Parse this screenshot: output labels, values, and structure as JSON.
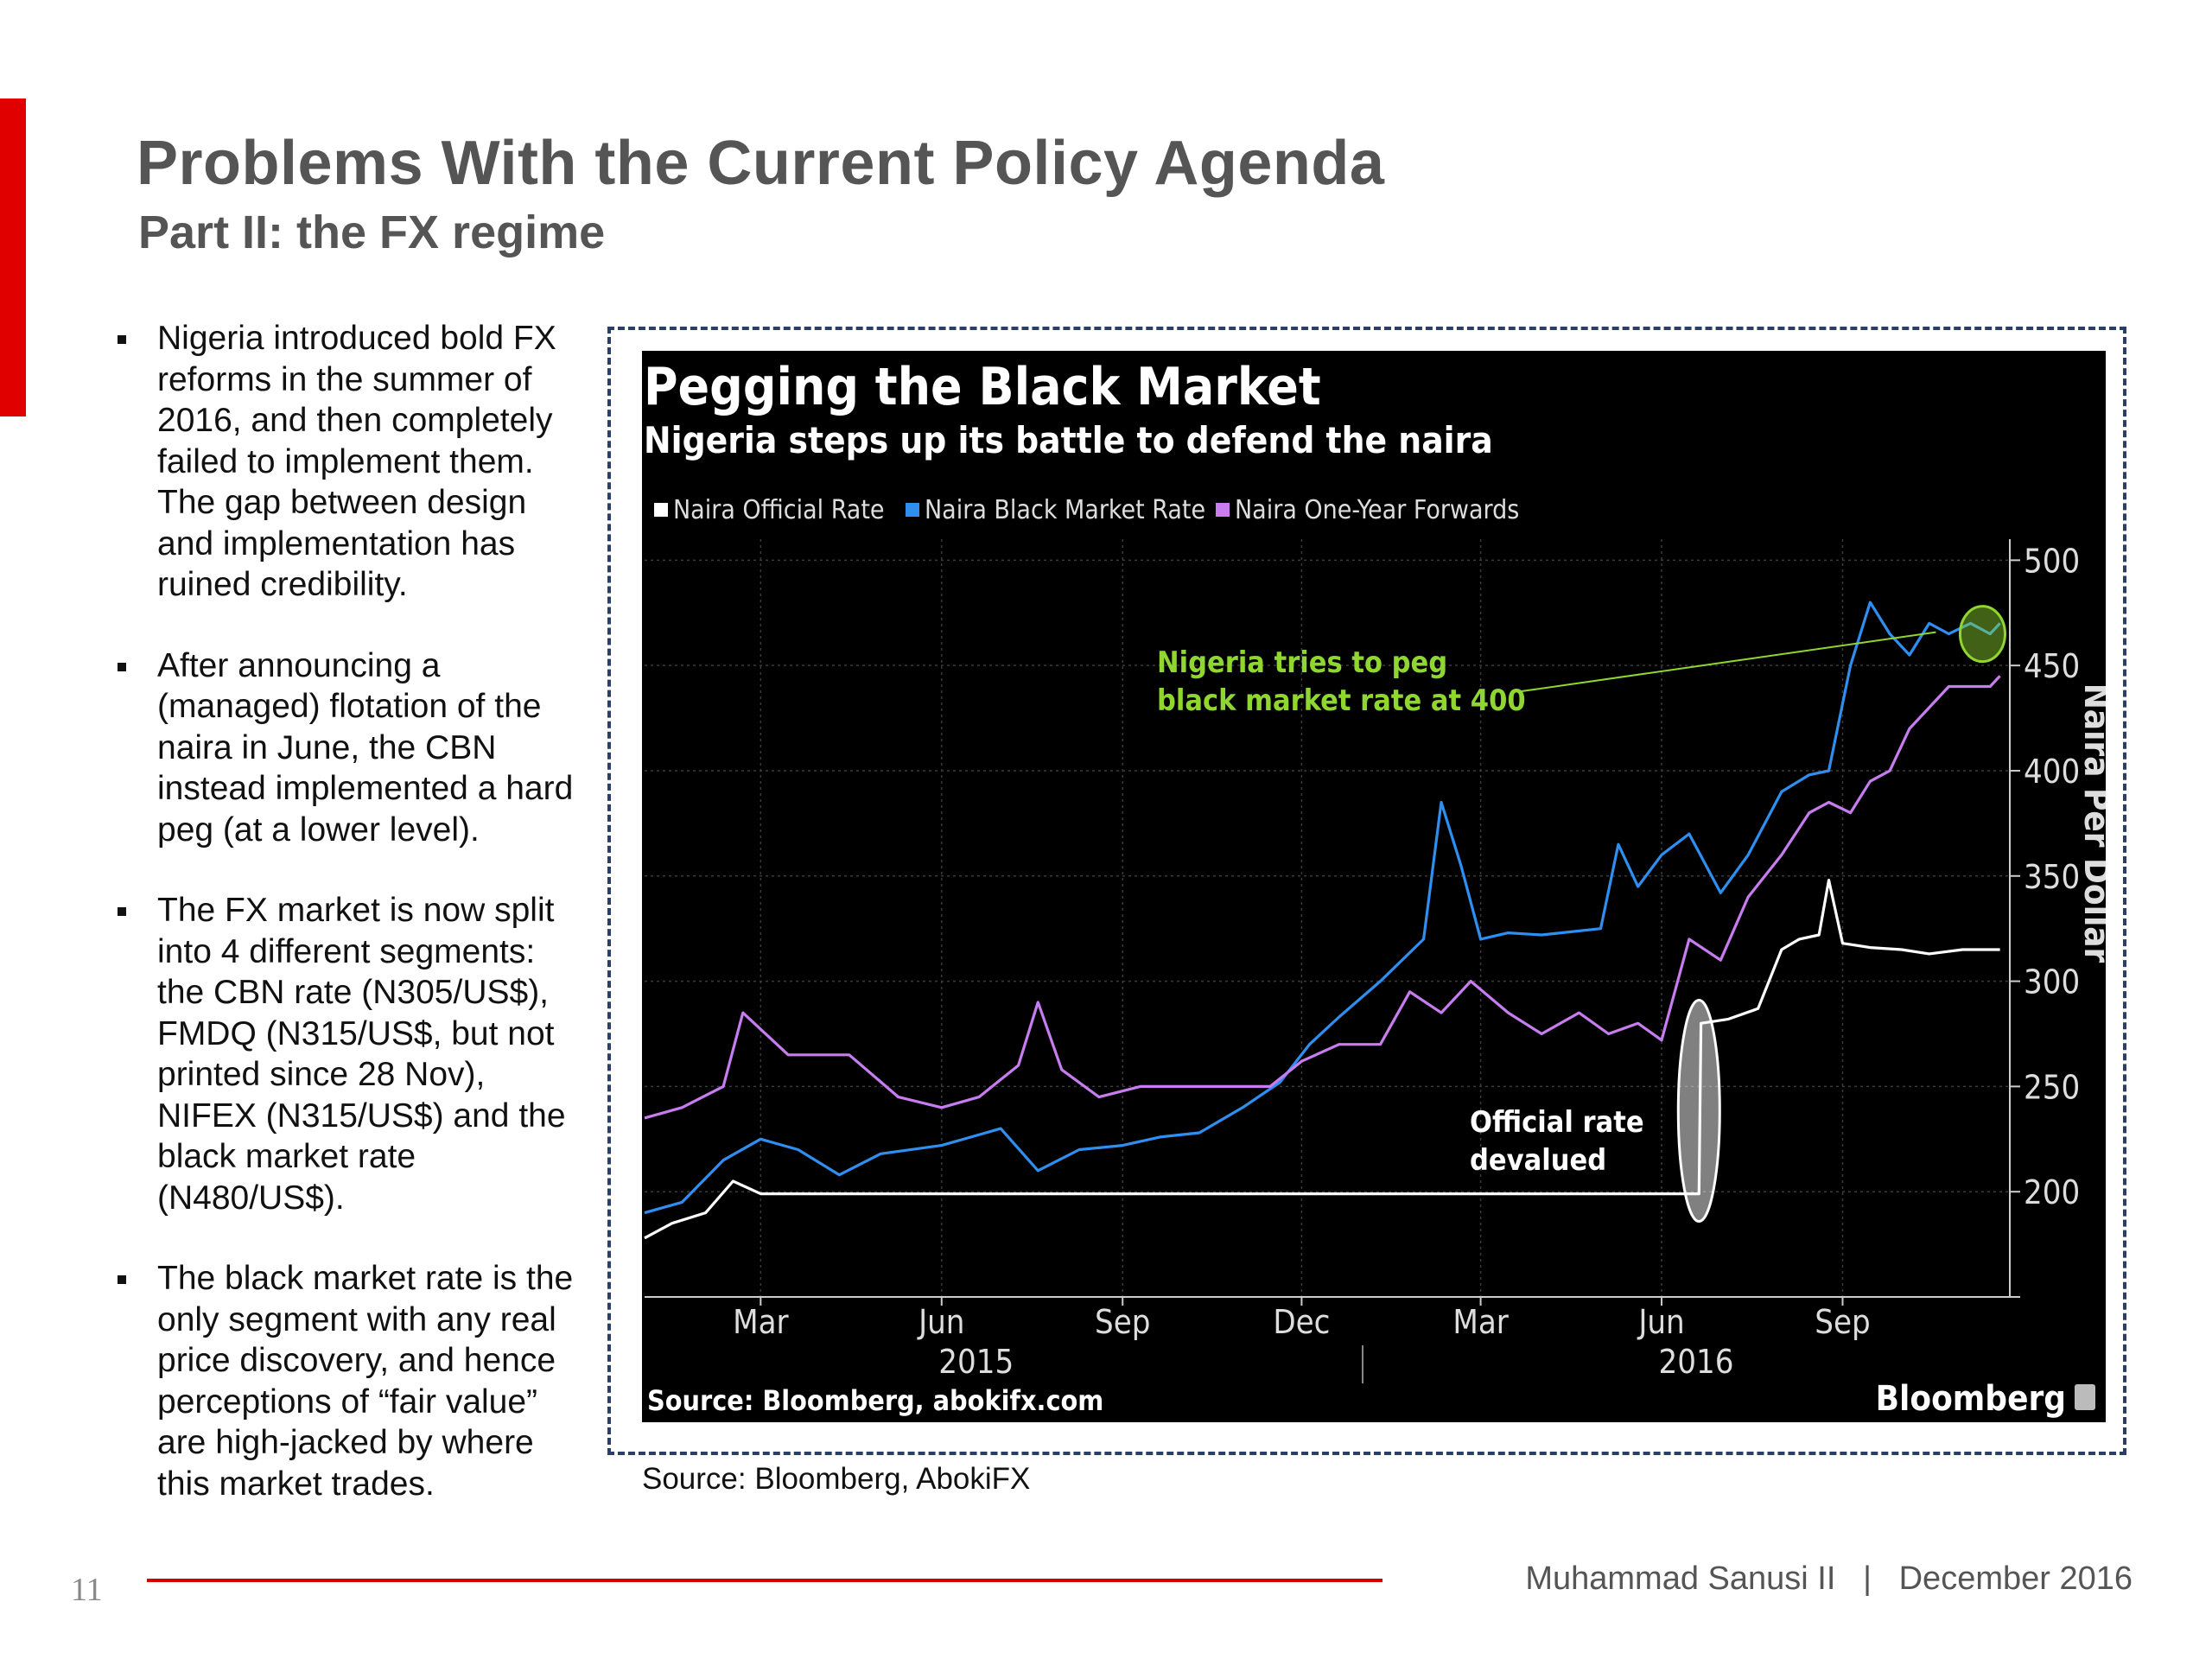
{
  "slide": {
    "title": "Problems With the Current Policy Agenda",
    "subtitle": "Part II: the FX regime",
    "bullets": [
      "Nigeria introduced bold FX reforms in the summer of 2016, and then completely failed to implement them. The gap between design and implementation has ruined credibility.",
      "After announcing a (managed) flotation of the naira in June, the CBN instead implemented a hard peg (at a lower level).",
      "The FX market is now split into 4 different segments: the CBN rate (N305/US$), FMDQ (N315/US$, but not printed since 28 Nov), NIFEX (N315/US$) and the black market rate (N480/US$).",
      "The black market rate is the only segment with any real price discovery, and hence perceptions of “fair value” are high-jacked by where this market trades."
    ],
    "chart_source": "Source: Bloomberg, AbokiFX",
    "page_number": "11",
    "footer": "Muhammad Sanusi II   |   December 2016"
  },
  "chart_data": {
    "type": "line",
    "title": "Pegging the Black Market",
    "subtitle": "Nigeria steps up its battle to defend the naira",
    "ylabel": "Naira Per Dollar",
    "source": "Source: Bloomberg, abokifx.com",
    "brand": "Bloomberg",
    "ylim": [
      150,
      510
    ],
    "yticks": [
      200,
      250,
      300,
      350,
      400,
      450,
      500
    ],
    "xlim": [
      "2015-01-01",
      "2016-11-25"
    ],
    "xticks": [
      {
        "label": "Mar",
        "date": "2015-03-01"
      },
      {
        "label": "Jun",
        "date": "2015-06-01",
        "year": "2015"
      },
      {
        "label": "Sep",
        "date": "2015-09-01"
      },
      {
        "label": "Dec",
        "date": "2015-12-01"
      },
      {
        "label": "Mar",
        "date": "2016-03-01"
      },
      {
        "label": "Jun",
        "date": "2016-06-01",
        "year": "2016"
      },
      {
        "label": "Sep",
        "date": "2016-09-01"
      }
    ],
    "grid": true,
    "legend_position": "top-left",
    "annotations": [
      {
        "text": [
          "Nigeria tries to peg",
          "black market rate at 400"
        ],
        "color": "#8fd630"
      },
      {
        "text": [
          "Official rate",
          "devalued"
        ],
        "color": "#ffffff"
      }
    ],
    "series": [
      {
        "name": "Naira Official Rate",
        "color": "#ffffff",
        "x": [
          "2015-01-01",
          "2015-01-15",
          "2015-02-01",
          "2015-02-15",
          "2015-03-01",
          "2015-05-01",
          "2015-08-01",
          "2015-11-01",
          "2016-02-01",
          "2016-06-10",
          "2016-06-20",
          "2016-06-21",
          "2016-07-05",
          "2016-07-20",
          "2016-08-01",
          "2016-08-10",
          "2016-08-20",
          "2016-08-25",
          "2016-09-01",
          "2016-09-15",
          "2016-10-01",
          "2016-10-15",
          "2016-11-01",
          "2016-11-20"
        ],
        "values": [
          178,
          185,
          190,
          205,
          199,
          199,
          199,
          199,
          199,
          199,
          199,
          280,
          282,
          287,
          315,
          320,
          322,
          348,
          318,
          316,
          315,
          313,
          315,
          315
        ]
      },
      {
        "name": "Naira Black Market Rate",
        "color": "#2f8ff0",
        "x": [
          "2015-01-01",
          "2015-01-20",
          "2015-02-10",
          "2015-03-01",
          "2015-03-20",
          "2015-04-10",
          "2015-05-01",
          "2015-06-01",
          "2015-07-01",
          "2015-07-20",
          "2015-08-10",
          "2015-09-01",
          "2015-09-20",
          "2015-10-10",
          "2015-11-01",
          "2015-11-20",
          "2015-12-05",
          "2015-12-20",
          "2016-01-10",
          "2016-02-01",
          "2016-02-10",
          "2016-02-20",
          "2016-03-01",
          "2016-03-15",
          "2016-04-01",
          "2016-05-01",
          "2016-05-10",
          "2016-05-20",
          "2016-06-01",
          "2016-06-15",
          "2016-07-01",
          "2016-07-15",
          "2016-08-01",
          "2016-08-15",
          "2016-08-25",
          "2016-09-05",
          "2016-09-15",
          "2016-09-25",
          "2016-10-05",
          "2016-10-15",
          "2016-10-25",
          "2016-11-05",
          "2016-11-15",
          "2016-11-20"
        ],
        "values": [
          190,
          195,
          215,
          225,
          220,
          208,
          218,
          222,
          230,
          210,
          220,
          222,
          226,
          228,
          240,
          252,
          270,
          283,
          300,
          320,
          385,
          355,
          320,
          323,
          322,
          325,
          365,
          345,
          360,
          370,
          342,
          360,
          390,
          398,
          400,
          450,
          480,
          465,
          455,
          470,
          465,
          470,
          465,
          470
        ]
      },
      {
        "name": "Naira One-Year Forwards",
        "color": "#c77cf0",
        "x": [
          "2015-01-01",
          "2015-01-20",
          "2015-02-10",
          "2015-02-20",
          "2015-03-15",
          "2015-04-15",
          "2015-05-10",
          "2015-06-01",
          "2015-06-20",
          "2015-07-10",
          "2015-07-20",
          "2015-08-01",
          "2015-08-20",
          "2015-09-10",
          "2015-10-10",
          "2015-11-01",
          "2015-11-15",
          "2015-12-01",
          "2015-12-20",
          "2016-01-10",
          "2016-01-25",
          "2016-02-10",
          "2016-02-25",
          "2016-03-15",
          "2016-04-01",
          "2016-04-20",
          "2016-05-05",
          "2016-05-20",
          "2016-06-01",
          "2016-06-15",
          "2016-07-01",
          "2016-07-15",
          "2016-08-01",
          "2016-08-15",
          "2016-08-25",
          "2016-09-05",
          "2016-09-15",
          "2016-09-25",
          "2016-10-05",
          "2016-10-15",
          "2016-10-25",
          "2016-11-05",
          "2016-11-15",
          "2016-11-20"
        ],
        "values": [
          235,
          240,
          250,
          285,
          265,
          265,
          245,
          240,
          245,
          260,
          290,
          258,
          245,
          250,
          250,
          250,
          250,
          262,
          270,
          270,
          295,
          285,
          300,
          285,
          275,
          285,
          275,
          280,
          272,
          320,
          310,
          340,
          360,
          380,
          385,
          380,
          395,
          400,
          420,
          430,
          440,
          440,
          440,
          445
        ]
      }
    ]
  }
}
